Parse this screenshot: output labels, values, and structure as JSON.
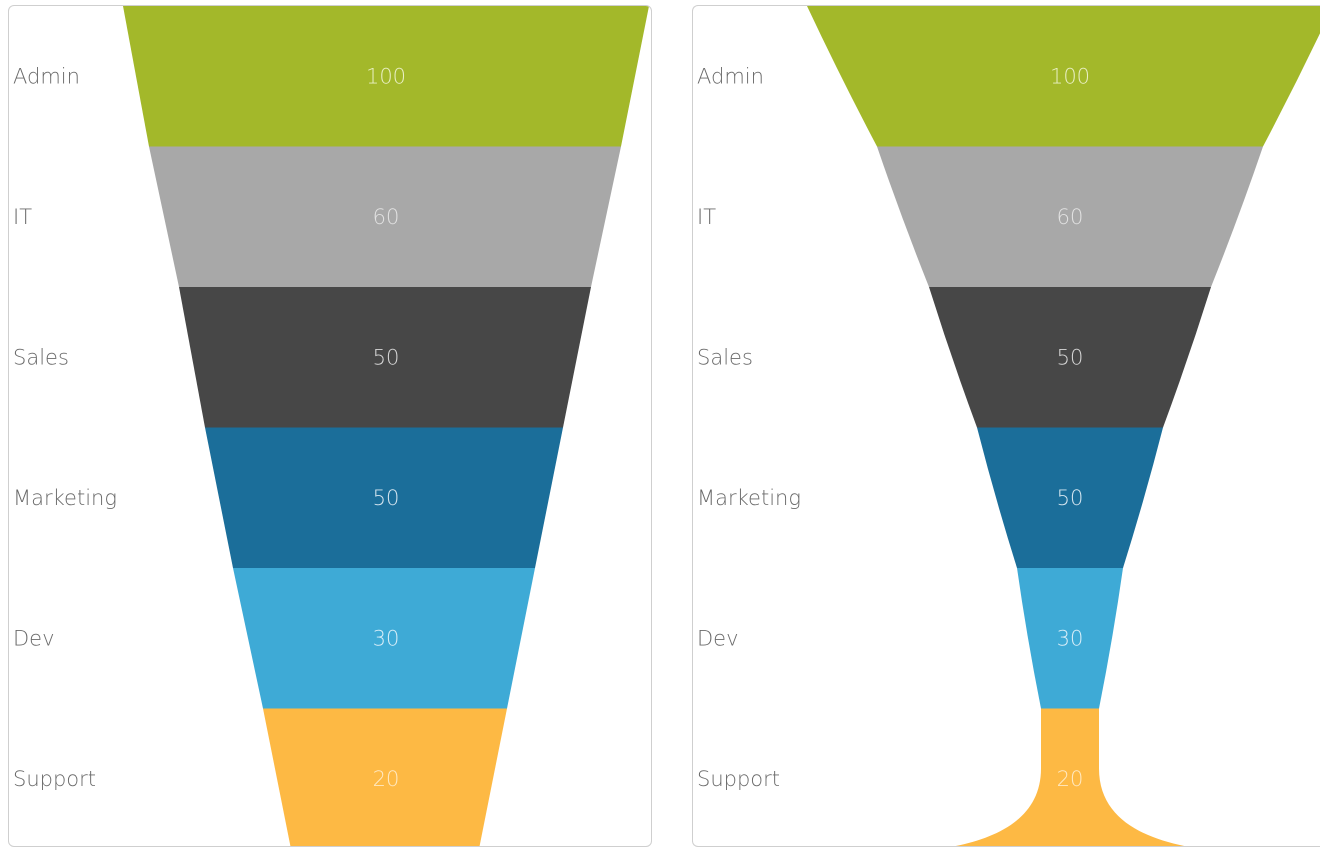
{
  "chart_data": [
    {
      "type": "funnel",
      "shape": "straight",
      "categories": [
        "Admin",
        "IT",
        "Sales",
        "Marketing",
        "Dev",
        "Support"
      ],
      "values": [
        100,
        60,
        50,
        50,
        30,
        20
      ],
      "colors": [
        "#a3b82a",
        "#a8a8a8",
        "#474747",
        "#1b6e9a",
        "#3eaad6",
        "#fdb944"
      ],
      "label_colors": [
        "#e9efc4",
        "#e2e2e2",
        "#d8d8d8",
        "#d6e6f0",
        "#d9eef8",
        "#ffe9c2"
      ]
    },
    {
      "type": "funnel",
      "shape": "curved",
      "categories": [
        "Admin",
        "IT",
        "Sales",
        "Marketing",
        "Dev",
        "Support"
      ],
      "values": [
        100,
        60,
        50,
        50,
        30,
        20
      ],
      "colors": [
        "#a3b82a",
        "#a8a8a8",
        "#474747",
        "#1b6e9a",
        "#3eaad6",
        "#fdb944"
      ],
      "label_colors": [
        "#e9efc4",
        "#e2e2e2",
        "#d8d8d8",
        "#d6e6f0",
        "#d9eef8",
        "#ffe9c2"
      ]
    }
  ]
}
